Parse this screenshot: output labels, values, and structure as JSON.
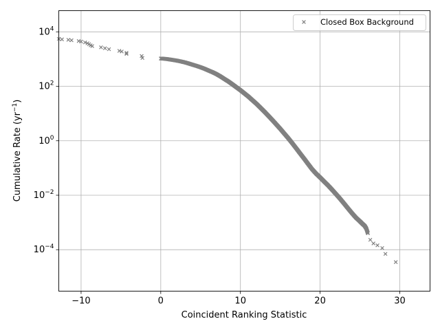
{
  "chart_data": {
    "type": "scatter",
    "title": "",
    "xlabel": "Coincident Ranking Statistic",
    "ylabel": {
      "text": "Cumulative Rate (yr",
      "sup": "−1",
      "close": ")"
    },
    "xscale": "linear",
    "yscale": "log",
    "xlim": [
      -12.8,
      33.8
    ],
    "ylim": [
      3e-06,
      60000.0
    ],
    "xticks": [
      {
        "value": -10,
        "label": "−10"
      },
      {
        "value": 0,
        "label": "0"
      },
      {
        "value": 10,
        "label": "10"
      },
      {
        "value": 20,
        "label": "20"
      },
      {
        "value": 30,
        "label": "30"
      }
    ],
    "yticks": [
      {
        "value": 0.0001,
        "base": "10",
        "exp": "−4"
      },
      {
        "value": 0.01,
        "base": "10",
        "exp": "−2"
      },
      {
        "value": 1,
        "base": "10",
        "exp": "0"
      },
      {
        "value": 100,
        "base": "10",
        "exp": "2"
      },
      {
        "value": 10000,
        "base": "10",
        "exp": "4"
      }
    ],
    "grid": true,
    "legend": {
      "position": "top-right"
    },
    "series": [
      {
        "name": "Closed Box Background",
        "color": "#808080",
        "marker": "x",
        "points": [
          [
            -12.8,
            5500
          ],
          [
            -12.4,
            5300
          ],
          [
            -11.6,
            5100
          ],
          [
            -11.2,
            4900
          ],
          [
            -10.3,
            4600
          ],
          [
            -10.0,
            4400
          ],
          [
            -9.5,
            4100
          ],
          [
            -9.2,
            3800
          ],
          [
            -9.0,
            3500
          ],
          [
            -8.8,
            3200
          ],
          [
            -8.6,
            3000
          ],
          [
            -7.5,
            2700
          ],
          [
            -7.0,
            2500
          ],
          [
            -6.5,
            2300
          ],
          [
            -5.2,
            2000
          ],
          [
            -4.9,
            1900
          ],
          [
            -4.3,
            1700
          ],
          [
            -4.3,
            1550
          ],
          [
            -2.4,
            1300
          ],
          [
            -2.3,
            1100
          ],
          [
            0.0,
            1050
          ],
          [
            0.4,
            1030
          ],
          [
            0.8,
            1000
          ],
          [
            1.2,
            960
          ],
          [
            1.6,
            920
          ],
          [
            2.0,
            880
          ],
          [
            2.5,
            820
          ],
          [
            3.0,
            760
          ],
          [
            3.5,
            690
          ],
          [
            4.0,
            620
          ],
          [
            4.5,
            560
          ],
          [
            5.0,
            500
          ],
          [
            5.5,
            440
          ],
          [
            6.0,
            380
          ],
          [
            6.5,
            330
          ],
          [
            7.0,
            280
          ],
          [
            7.5,
            230
          ],
          [
            8.0,
            185
          ],
          [
            8.5,
            150
          ],
          [
            9.0,
            118
          ],
          [
            9.5,
            92
          ],
          [
            10.0,
            72
          ],
          [
            10.5,
            55
          ],
          [
            11.0,
            42
          ],
          [
            11.5,
            31
          ],
          [
            12.0,
            23
          ],
          [
            12.5,
            16.5
          ],
          [
            13.0,
            11.8
          ],
          [
            13.5,
            8.3
          ],
          [
            14.0,
            5.8
          ],
          [
            14.5,
            4.0
          ],
          [
            15.0,
            2.75
          ],
          [
            15.5,
            1.85
          ],
          [
            16.0,
            1.25
          ],
          [
            16.5,
            0.82
          ],
          [
            17.0,
            0.53
          ],
          [
            17.5,
            0.34
          ],
          [
            18.0,
            0.22
          ],
          [
            18.5,
            0.14
          ],
          [
            19.0,
            0.09
          ],
          [
            19.5,
            0.062
          ],
          [
            20.0,
            0.045
          ],
          [
            20.5,
            0.032
          ],
          [
            21.0,
            0.023
          ],
          [
            21.5,
            0.016
          ],
          [
            22.0,
            0.011
          ],
          [
            22.5,
            0.0075
          ],
          [
            23.0,
            0.005
          ],
          [
            23.5,
            0.0033
          ],
          [
            24.0,
            0.0022
          ],
          [
            24.5,
            0.0015
          ],
          [
            25.0,
            0.0011
          ],
          [
            25.3,
            0.0009
          ],
          [
            25.6,
            0.00075
          ],
          [
            25.8,
            0.0006
          ],
          [
            26.0,
            0.0004
          ],
          [
            26.3,
            0.00023
          ],
          [
            26.7,
            0.00017
          ],
          [
            27.2,
            0.000145
          ],
          [
            27.8,
            0.000115
          ],
          [
            28.2,
            7e-05
          ],
          [
            29.5,
            3.5e-05
          ]
        ]
      }
    ]
  }
}
